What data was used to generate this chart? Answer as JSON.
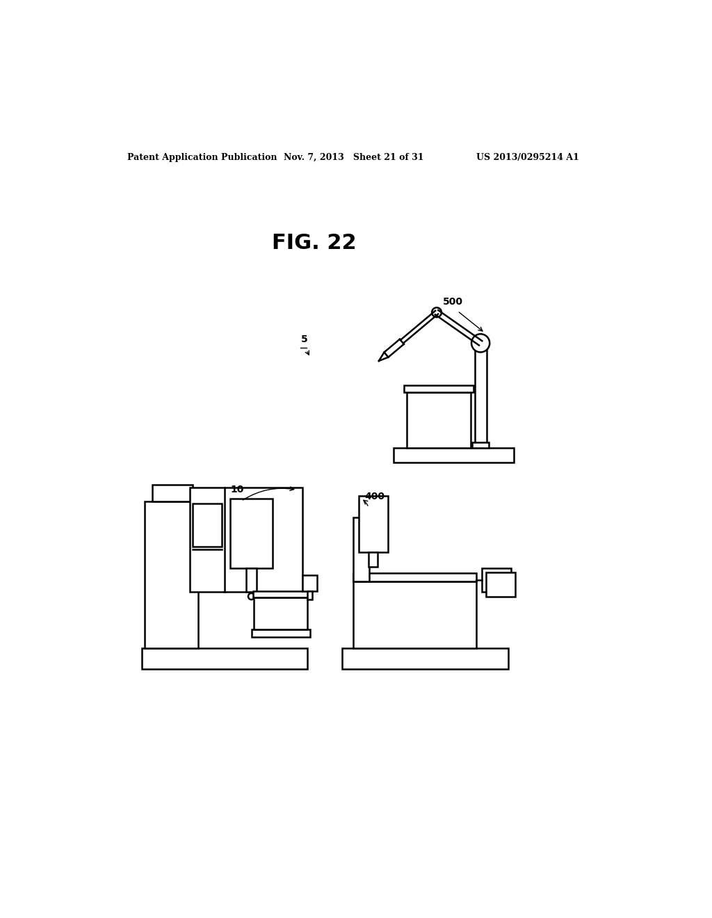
{
  "background_color": "#ffffff",
  "header_left": "Patent Application Publication",
  "header_mid": "Nov. 7, 2013   Sheet 21 of 31",
  "header_right": "US 2013/0295214 A1",
  "fig_label": "FIG. 22",
  "label_5": "5",
  "label_10": "10",
  "label_400": "400",
  "label_500": "500"
}
